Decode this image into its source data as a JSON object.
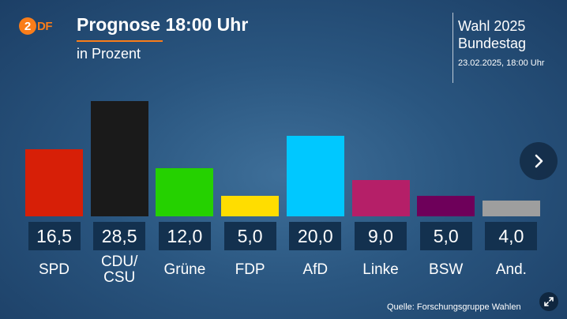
{
  "logo": {
    "brand": "ZDF",
    "letter": "2",
    "text": "DF"
  },
  "title": "Prognose 18:00 Uhr",
  "subtitle": "in Prozent",
  "election": {
    "title": "Wahl 2025",
    "body": "Bundestag",
    "date": "23.02.2025, 18:00 Uhr"
  },
  "source": "Quelle: Forschungsgruppe Wahlen",
  "controls": {
    "next_icon": "chevron-right",
    "expand_icon": "expand-arrows"
  },
  "colors": {
    "accent": "#fa7d19",
    "value_box": "#13314f"
  },
  "chart_data": {
    "type": "bar",
    "title": "Prognose 18:00 Uhr",
    "subtitle": "in Prozent",
    "categories": [
      "SPD",
      "CDU/\nCSU",
      "Grüne",
      "FDP",
      "AfD",
      "Linke",
      "BSW",
      "And."
    ],
    "values": [
      16.5,
      28.5,
      12.0,
      5.0,
      20.0,
      9.0,
      5.0,
      4.0
    ],
    "value_labels": [
      "16,5",
      "28,5",
      "12,0",
      "5,0",
      "20,0",
      "9,0",
      "5,0",
      "4,0"
    ],
    "colors": [
      "#d71f07",
      "#1a1a1a",
      "#25d100",
      "#ffdd00",
      "#00c8ff",
      "#b51f68",
      "#6e005a",
      "#9e9e9e"
    ],
    "grid": false,
    "legend": "none"
  }
}
